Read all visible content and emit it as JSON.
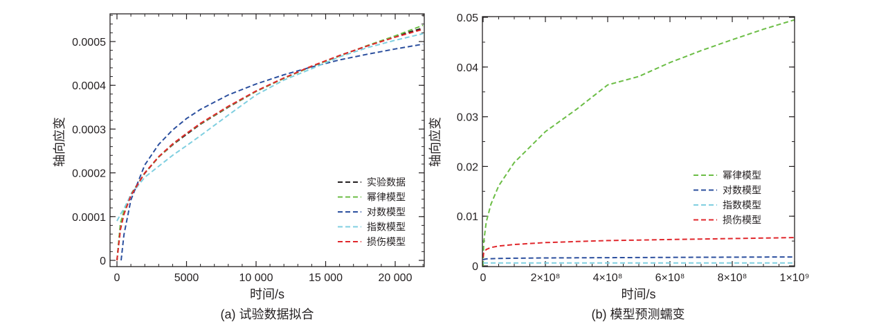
{
  "chart_data": [
    {
      "type": "line",
      "caption": "(a) 试验数据拟合",
      "xlabel": "时间/s",
      "ylabel": "轴向应变",
      "xlim": [
        -400,
        22000
      ],
      "ylim": [
        -1.5e-05,
        0.00057
      ],
      "xticks": [
        0,
        5000,
        10000,
        15000,
        20000
      ],
      "xtick_labels": [
        "0",
        "5000",
        "10 000",
        "15 000",
        "20 000"
      ],
      "yticks": [
        0,
        0.0001,
        0.0002,
        0.0003,
        0.0004,
        0.0005
      ],
      "ytick_labels": [
        "0",
        "0.0001",
        "0.0002",
        "0.0003",
        "0.0004",
        "0.0005"
      ],
      "legend_position": "bottom-right",
      "x": [
        0,
        250,
        500,
        1000,
        2000,
        3000,
        4000,
        5000,
        6000,
        8000,
        10000,
        12000,
        14000,
        16000,
        18000,
        20000,
        22000
      ],
      "series": [
        {
          "name": "实验数据",
          "color": "#231f20",
          "values": [
            0,
            8.2e-05,
            0.000112,
            0.000151,
            0.000199,
            0.000236,
            0.000264,
            0.000288,
            0.000311,
            0.00035,
            0.000386,
            0.000416,
            0.000443,
            0.000468,
            0.00049,
            0.000512,
            0.000531
          ]
        },
        {
          "name": "幂律模型",
          "color": "#6bbd45",
          "values": [
            0,
            8.5e-05,
            0.000113,
            0.00015,
            0.0002,
            0.000236,
            0.000265,
            0.00029,
            0.000312,
            0.000351,
            0.000386,
            0.000416,
            0.000443,
            0.000467,
            0.000491,
            0.000513,
            0.000537
          ]
        },
        {
          "name": "对数模型",
          "color": "#2b4f9e",
          "x": [
            300,
            500,
            1000,
            2000,
            3000,
            4000,
            5000,
            6000,
            8000,
            10000,
            12000,
            14000,
            16000,
            18000,
            20000,
            22000
          ],
          "values": [
            0,
            5.87e-05,
            0.000138,
            0.000218,
            0.000265,
            0.000298,
            0.000324,
            0.000345,
            0.000378,
            0.000403,
            0.000424,
            0.000442,
            0.000458,
            0.000471,
            0.000483,
            0.000494
          ]
        },
        {
          "name": "指数模型",
          "color": "#7fcfe0",
          "values": [
            9e-05,
            0.000105,
            0.000118,
            0.00015,
            0.00019,
            0.000215,
            0.00024,
            0.000262,
            0.000285,
            0.000332,
            0.000378,
            0.000412,
            0.000438,
            0.000465,
            0.000486,
            0.000503,
            0.000518
          ]
        },
        {
          "name": "损伤模型",
          "color": "#e0262b",
          "values": [
            0,
            7e-05,
            0.000105,
            0.000148,
            0.0002,
            0.000237,
            0.000266,
            0.00029,
            0.000313,
            0.000352,
            0.000387,
            0.000417,
            0.000444,
            0.000468,
            0.00049,
            0.00051,
            0.000528
          ]
        }
      ]
    },
    {
      "type": "line",
      "caption": "(b) 模型预测蠕变",
      "xlabel": "时间/s",
      "ylabel": "轴向应变",
      "xlim": [
        0,
        1000000000
      ],
      "ylim": [
        0,
        0.05
      ],
      "xticks": [
        0,
        200000000,
        400000000,
        600000000,
        800000000,
        1000000000
      ],
      "xtick_labels": [
        "0",
        "2×10⁸",
        "4×10⁸",
        "6×10⁸",
        "8×10⁸",
        "1×10⁹"
      ],
      "yticks": [
        0,
        0.01,
        0.02,
        0.03,
        0.04,
        0.05
      ],
      "ytick_labels": [
        "0",
        "0.01",
        "0.02",
        "0.03",
        "0.04",
        "0.05"
      ],
      "legend_position": "right-middle",
      "x": [
        0,
        2000000,
        10000000,
        25000000,
        50000000,
        100000000,
        200000000,
        300000000,
        400000000,
        500000000,
        600000000,
        700000000,
        800000000,
        900000000,
        1000000000
      ],
      "series": [
        {
          "name": "幂律模型",
          "color": "#6bbd45",
          "values": [
            0,
            0.0048,
            0.0088,
            0.0124,
            0.0161,
            0.0208,
            0.027,
            0.0315,
            0.0364,
            0.0381,
            0.0409,
            0.0433,
            0.0455,
            0.0476,
            0.0495
          ]
        },
        {
          "name": "对数模型",
          "color": "#2b4f9e",
          "values": [
            0.0012,
            0.0013,
            0.0014,
            0.00145,
            0.0015,
            0.00155,
            0.0016,
            0.00163,
            0.00166,
            0.00169,
            0.00172,
            0.00174,
            0.00176,
            0.00178,
            0.0018
          ]
        },
        {
          "name": "指数模型",
          "color": "#7fcfe0",
          "values": [
            0.0006,
            0.0006,
            0.0006,
            0.0006,
            0.0006,
            0.0006,
            0.0006,
            0.0006,
            0.0006,
            0.0006,
            0.0006,
            0.0006,
            0.0006,
            0.0006,
            0.0006
          ]
        },
        {
          "name": "损伤模型",
          "color": "#e0262b",
          "values": [
            0.0017,
            0.0026,
            0.0033,
            0.0037,
            0.004,
            0.0043,
            0.0047,
            0.0049,
            0.0051,
            0.0052,
            0.0053,
            0.0054,
            0.0055,
            0.0056,
            0.0057
          ]
        }
      ]
    }
  ]
}
